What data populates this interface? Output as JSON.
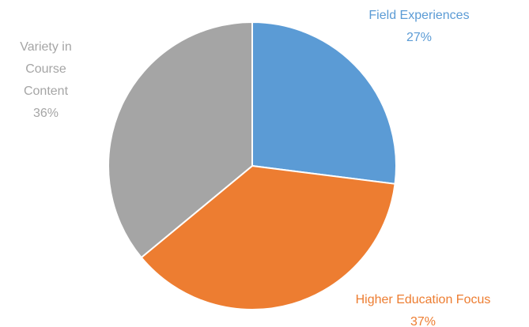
{
  "chart_data": {
    "type": "pie",
    "categories": [
      "Field Experiences",
      "Higher Education Focus",
      "Variety in Course Content"
    ],
    "values": [
      27,
      37,
      36
    ],
    "value_labels": [
      "27%",
      "37%",
      "36%"
    ],
    "colors": [
      "#5b9bd5",
      "#ed7d31",
      "#a5a5a5"
    ]
  }
}
